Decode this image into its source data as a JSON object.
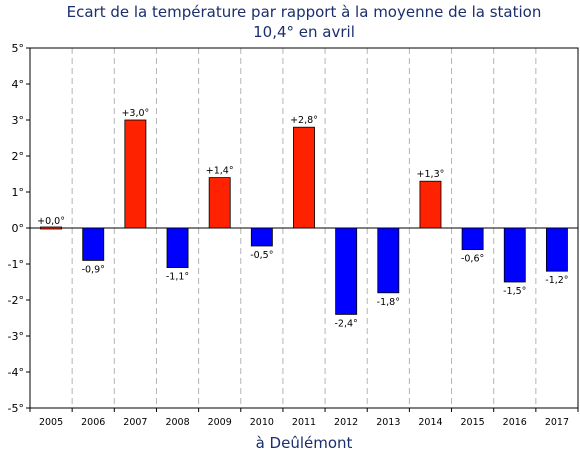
{
  "chart_data": {
    "type": "bar",
    "title": "Ecart de la température par rapport à la moyenne de la station",
    "subtitle": "10,4° en avril",
    "xlabel": "à Deûlémont",
    "categories": [
      "2005",
      "2006",
      "2007",
      "2008",
      "2009",
      "2010",
      "2011",
      "2012",
      "2013",
      "2014",
      "2015",
      "2016",
      "2017"
    ],
    "values": [
      0.0,
      -0.9,
      3.0,
      -1.1,
      1.4,
      -0.5,
      2.8,
      -2.4,
      -1.8,
      1.3,
      -0.6,
      -1.5,
      -1.2
    ],
    "data_labels": [
      "+0,0°",
      "-0,9°",
      "+3,0°",
      "-1,1°",
      "+1,4°",
      "-0,5°",
      "+2,8°",
      "-2,4°",
      "-1,8°",
      "+1,3°",
      "-0,6°",
      "-1,5°",
      "-1,2°"
    ],
    "ylim": [
      -5,
      5
    ],
    "yticks": [
      5,
      4,
      3,
      2,
      1,
      0,
      -1,
      -2,
      -3,
      -4,
      -5
    ],
    "ytick_labels": [
      "5°",
      "4°",
      "3°",
      "2°",
      "1°",
      "0°",
      "-1°",
      "-2°",
      "-3°",
      "-4°",
      "-5°"
    ],
    "grid": "vertical dashed",
    "colors": {
      "positive": "#ff2200",
      "negative": "#0000ff",
      "title": "#1b2e6e",
      "grid": "#b5b5b5"
    }
  }
}
